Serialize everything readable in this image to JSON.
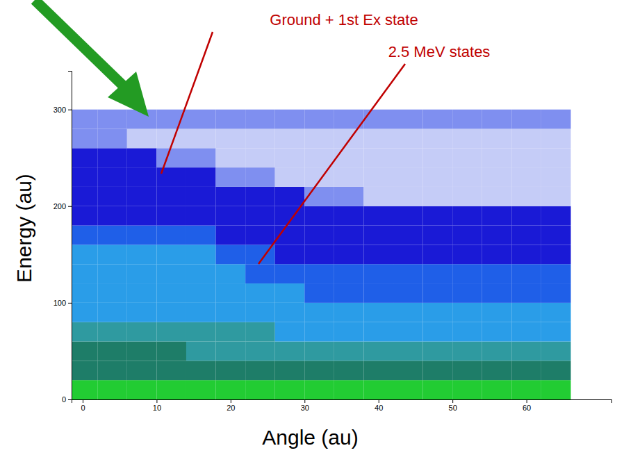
{
  "chart_data": {
    "type": "heatmap",
    "x_label": "Angle (au)",
    "y_label": "Energy (au)",
    "xlim": [
      -1.5,
      71.5
    ],
    "ylim": [
      0,
      340
    ],
    "xticks": [
      0,
      10,
      20,
      30,
      40,
      50,
      60
    ],
    "yticks": [
      0,
      100,
      200,
      300
    ],
    "x_bins": [
      -2,
      2,
      6,
      10,
      14,
      18,
      22,
      26,
      30,
      34,
      38,
      42,
      46,
      50,
      54,
      58,
      62,
      66
    ],
    "y_bins": [
      0,
      20,
      40,
      60,
      80,
      100,
      120,
      140,
      160,
      180,
      200,
      220,
      240,
      260,
      280,
      300
    ],
    "z": [
      [
        42,
        44,
        46,
        43,
        45,
        47,
        44,
        42,
        45,
        43,
        44,
        46,
        44,
        43,
        45,
        44,
        42
      ],
      [
        24,
        25,
        26,
        25,
        24,
        26,
        25,
        24,
        25,
        24,
        25,
        26,
        24,
        25,
        24,
        25,
        24
      ],
      [
        19,
        19,
        18,
        18,
        17,
        17,
        16,
        15,
        15,
        14,
        14,
        13,
        13,
        12,
        12,
        12,
        12
      ],
      [
        13,
        13,
        12,
        12,
        12,
        11,
        11,
        10,
        10,
        10,
        9,
        9,
        9,
        9,
        9,
        9,
        9
      ],
      [
        10,
        10,
        10,
        9,
        9,
        9,
        8,
        8,
        8,
        8,
        8,
        8,
        8,
        8,
        8,
        8,
        8
      ],
      [
        9,
        9,
        9,
        8,
        8,
        8,
        7,
        7,
        6,
        6,
        6,
        6,
        6,
        6,
        6,
        6,
        6
      ],
      [
        8,
        8,
        8,
        8,
        7,
        7,
        6,
        5,
        5,
        5,
        5,
        5,
        5,
        5,
        5,
        5,
        5
      ],
      [
        7,
        7,
        7,
        7,
        7,
        6,
        5,
        4,
        4,
        4,
        4,
        4,
        4,
        4,
        4,
        4,
        4
      ],
      [
        6,
        6,
        6,
        5,
        5,
        4,
        4,
        4,
        4,
        4,
        4,
        4,
        4,
        4,
        4,
        4,
        4
      ],
      [
        4,
        4,
        4,
        4,
        4,
        4,
        4,
        4,
        4,
        4,
        4,
        3,
        3,
        3,
        3,
        3,
        3
      ],
      [
        4,
        4,
        4,
        4,
        4,
        3,
        3,
        3,
        2,
        2,
        1,
        1,
        1,
        1,
        1,
        1,
        1
      ],
      [
        4,
        4,
        3,
        3,
        3,
        2,
        2,
        1,
        1,
        1,
        1,
        1,
        1,
        1,
        1,
        1,
        1
      ],
      [
        3,
        3,
        3,
        2,
        2,
        1,
        1,
        1,
        1,
        1,
        1,
        1,
        1,
        1,
        1,
        1,
        1
      ],
      [
        2,
        2,
        1,
        1,
        1,
        1,
        1,
        1,
        1,
        1,
        1,
        1,
        1,
        1,
        1,
        1,
        1
      ],
      [
        2,
        2,
        2,
        2,
        2,
        2,
        2,
        2,
        2,
        2,
        2,
        2,
        2,
        2,
        2,
        2,
        2
      ]
    ],
    "annotations": [
      {
        "text": "Ground + 1st Ex state"
      },
      {
        "text": "2.5 MeV states"
      }
    ]
  }
}
